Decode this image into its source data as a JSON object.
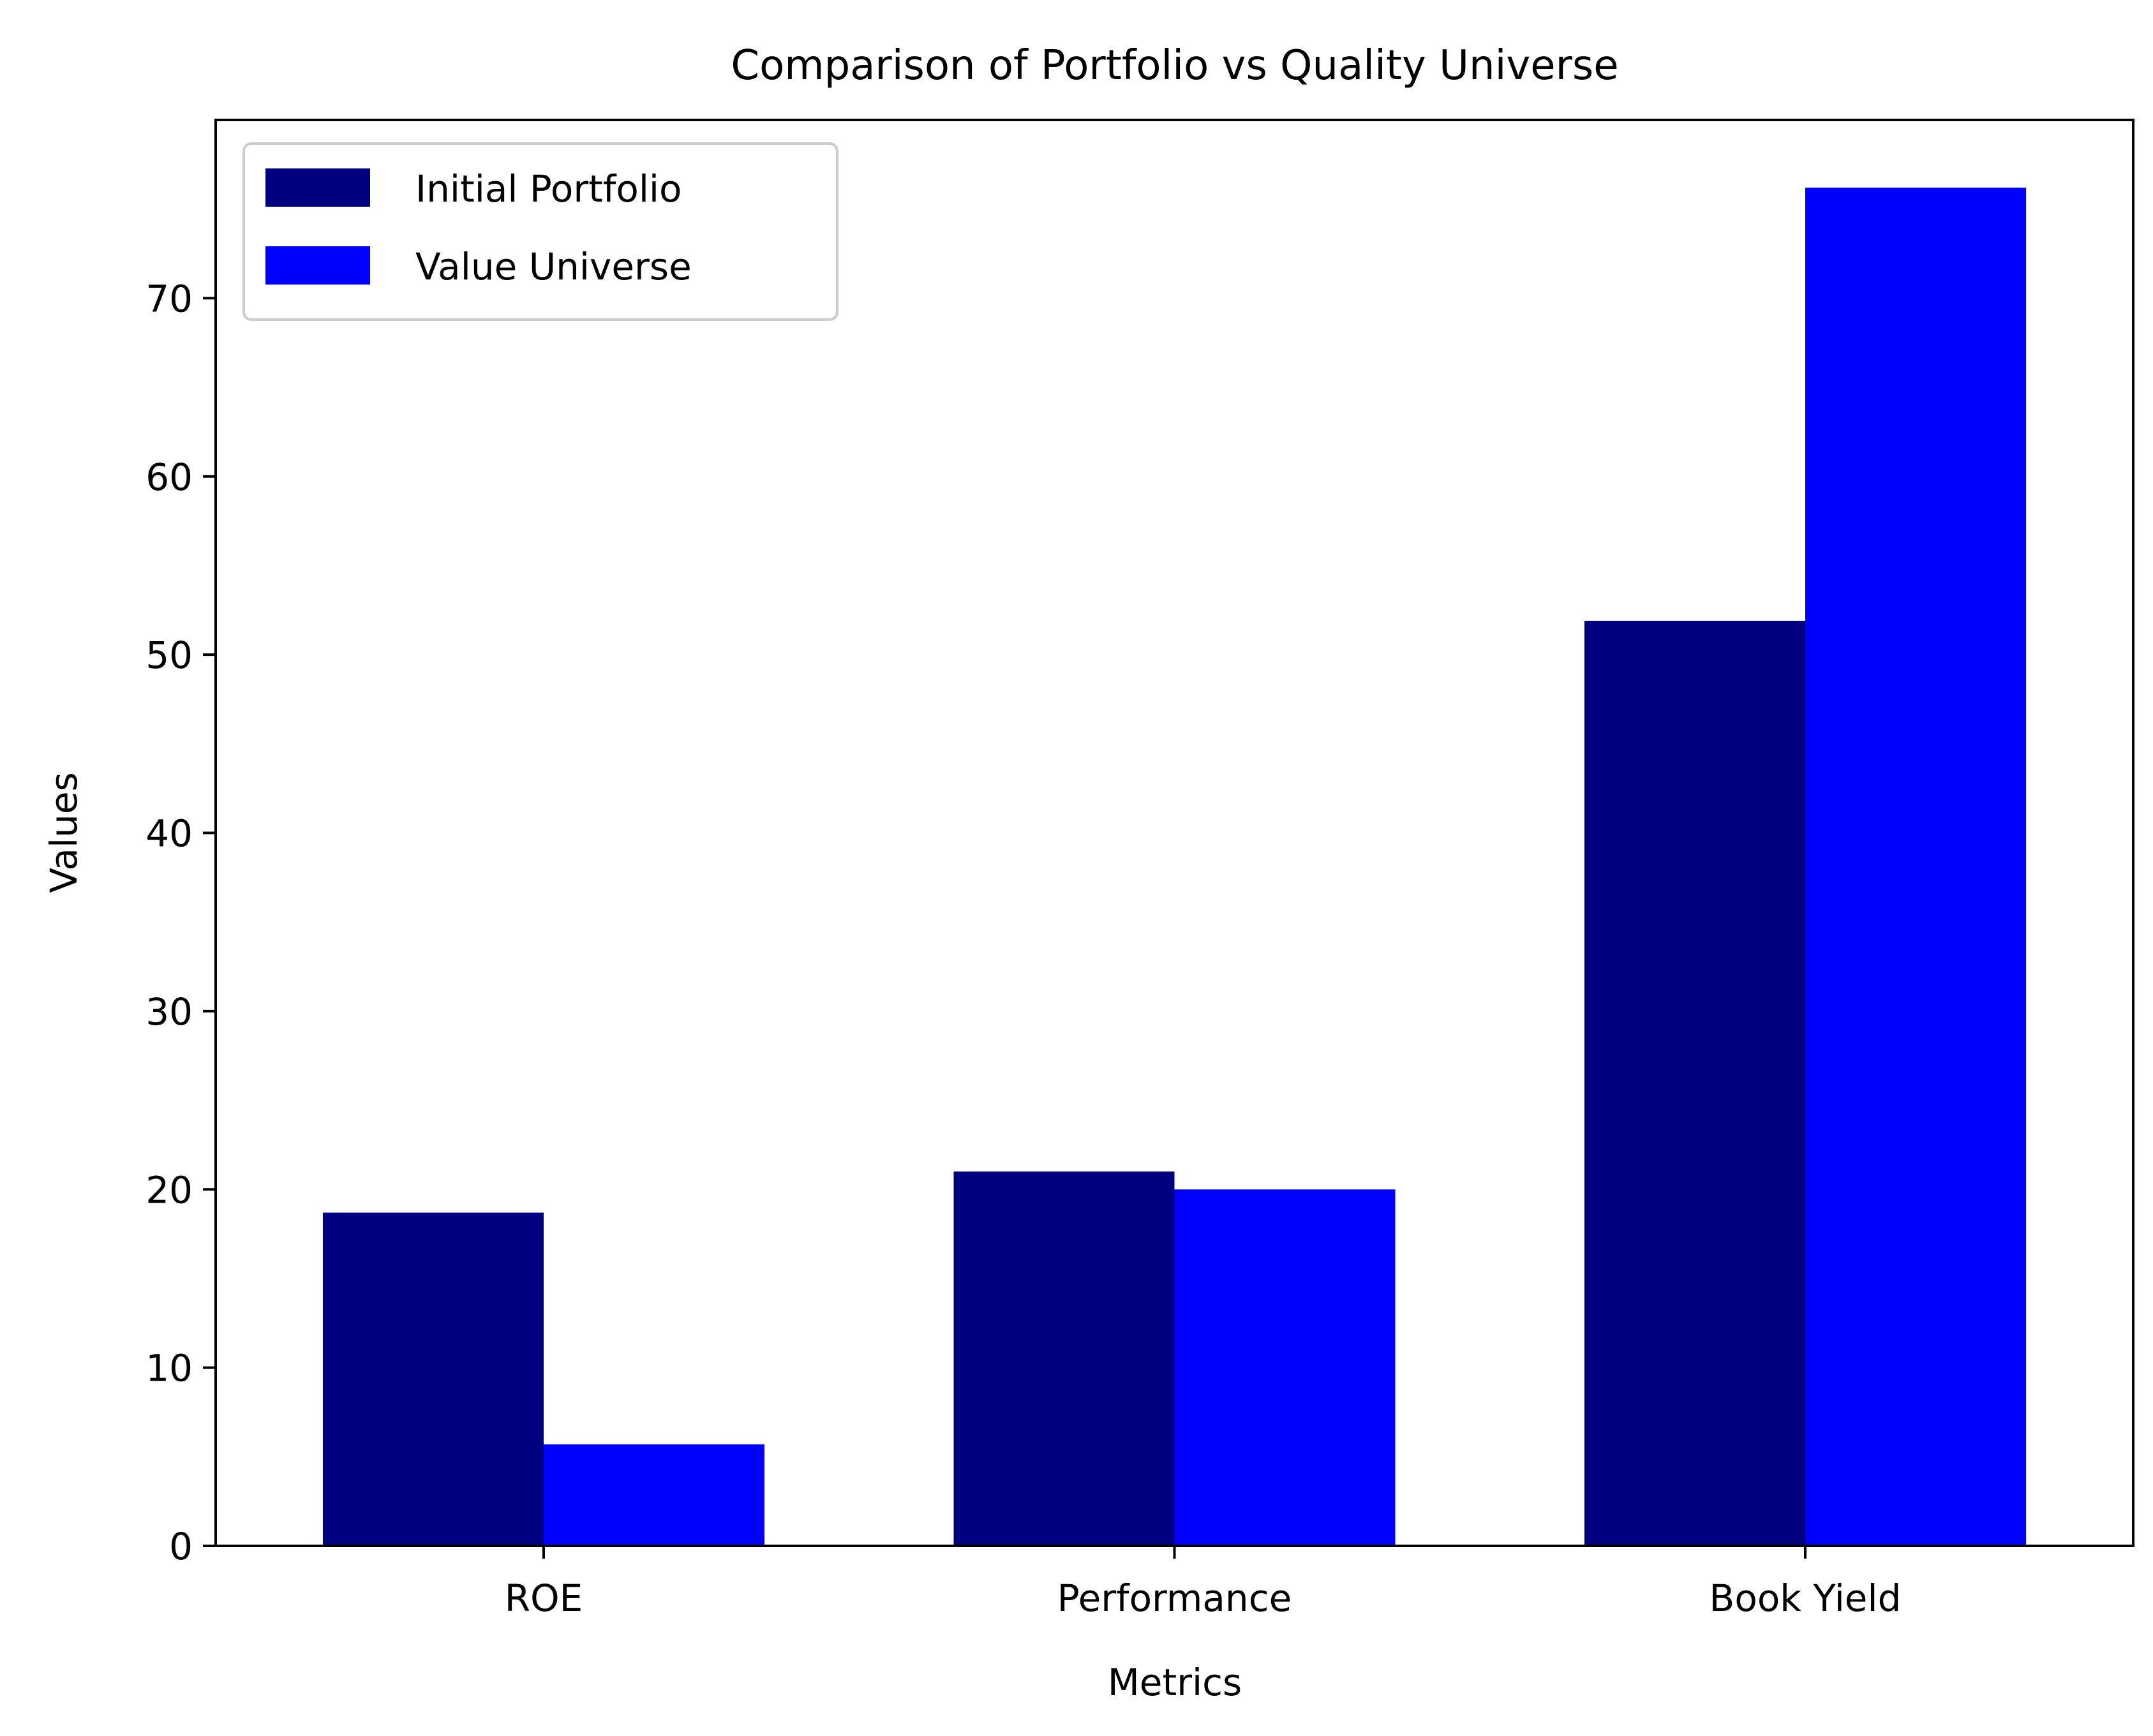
{
  "chart_data": {
    "type": "bar",
    "title": "Comparison of Portfolio vs Quality Universe",
    "xlabel": "Metrics",
    "ylabel": "Values",
    "categories": [
      "ROE",
      "Performance",
      "Book Yield"
    ],
    "series": [
      {
        "name": "Initial Portfolio",
        "values": [
          18.7,
          21.0,
          51.9
        ],
        "color": "#000080"
      },
      {
        "name": "Value Universe",
        "values": [
          5.7,
          20.0,
          76.2
        ],
        "color": "#0000ff"
      }
    ],
    "ylim": [
      0,
      80
    ],
    "yticks": [
      0,
      10,
      20,
      30,
      40,
      50,
      60,
      70
    ],
    "grid": false,
    "legend_position": "top-left"
  }
}
